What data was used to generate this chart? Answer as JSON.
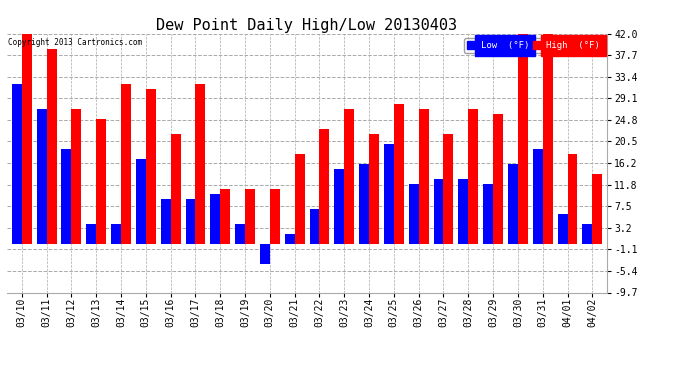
{
  "title": "Dew Point Daily High/Low 20130403",
  "copyright": "Copyright 2013 Cartronics.com",
  "dates": [
    "03/10",
    "03/11",
    "03/12",
    "03/13",
    "03/14",
    "03/15",
    "03/16",
    "03/17",
    "03/18",
    "03/19",
    "03/20",
    "03/21",
    "03/22",
    "03/23",
    "03/24",
    "03/25",
    "03/26",
    "03/27",
    "03/28",
    "03/29",
    "03/30",
    "03/31",
    "04/01",
    "04/02"
  ],
  "low_values": [
    32,
    27,
    19,
    4,
    4,
    17,
    9,
    9,
    10,
    4,
    -4,
    2,
    7,
    15,
    16,
    20,
    12,
    13,
    13,
    12,
    16,
    19,
    6,
    4
  ],
  "high_values": [
    42,
    39,
    27,
    25,
    32,
    31,
    22,
    32,
    11,
    11,
    11,
    18,
    23,
    27,
    22,
    28,
    27,
    22,
    27,
    26,
    42,
    42,
    18,
    14
  ],
  "ylim": [
    -9.7,
    42.0
  ],
  "yticks": [
    -9.7,
    -5.4,
    -1.1,
    3.2,
    7.5,
    11.8,
    16.2,
    20.5,
    24.8,
    29.1,
    33.4,
    37.7,
    42.0
  ],
  "low_color": "#0000ff",
  "high_color": "#ff0000",
  "background_color": "#ffffff",
  "grid_color": "#aaaaaa",
  "bar_width": 0.4,
  "title_fontsize": 11,
  "tick_fontsize": 7,
  "legend_low_label": "Low  (°F)",
  "legend_high_label": "High  (°F)"
}
